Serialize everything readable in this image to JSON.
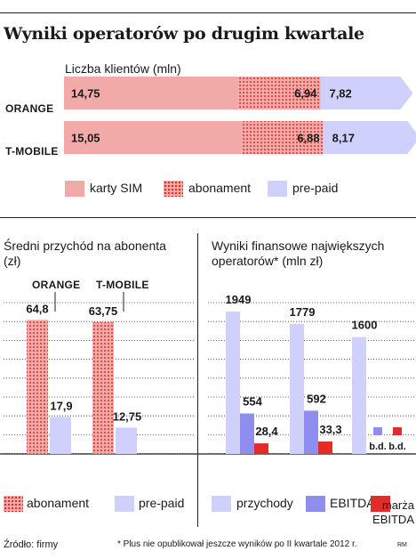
{
  "title": "Wyniki operatorów po drugim kwartale",
  "source": "Źródło: firmy",
  "footnote": "* Plus nie opublikował jeszcze wyników po II kwartale 2012 r.",
  "credit": "RM",
  "colors": {
    "karty_sim": "#f2aaa8",
    "abonament_dots": "#d9302e",
    "pre_paid": "#cfd0fb",
    "ebitda": "#8f8ef0",
    "marza": "#e32c2a"
  },
  "chart_data": [
    {
      "type": "bar",
      "stacked": true,
      "orientation": "horizontal",
      "title": "Liczba klientów (mln)",
      "categories": [
        "ORANGE",
        "T-MOBILE"
      ],
      "series": [
        {
          "name": "karty SIM",
          "values": [
            14.75,
            15.05
          ],
          "labels": [
            "14,75",
            "15,05"
          ]
        },
        {
          "name": "abonament",
          "values": [
            6.94,
            6.88
          ],
          "labels": [
            "6,94",
            "6,88"
          ]
        },
        {
          "name": "pre-paid",
          "values": [
            7.82,
            8.17
          ],
          "labels": [
            "7,82",
            "8,17"
          ]
        }
      ]
    },
    {
      "type": "bar",
      "title": "Średni przychód na abonenta (zł)",
      "categories": [
        "ORANGE",
        "T-MOBILE"
      ],
      "series": [
        {
          "name": "abonament",
          "values": [
            64.8,
            63.75
          ],
          "labels": [
            "64,8",
            "63,75"
          ]
        },
        {
          "name": "pre-paid",
          "values": [
            17.9,
            12.75
          ],
          "labels": [
            "17,9",
            "12,75"
          ]
        }
      ],
      "ylim": [
        0,
        80
      ]
    },
    {
      "type": "bar",
      "title": "Wyniki finansowe największych operatorów* (mln zł)",
      "groups": 3,
      "series": [
        {
          "name": "przychody",
          "values": [
            1949,
            1779,
            1600
          ],
          "labels": [
            "1949",
            "1779",
            "1600"
          ]
        },
        {
          "name": "EBITDA",
          "values": [
            554,
            592,
            null
          ],
          "labels": [
            "554",
            "592",
            "b.d."
          ]
        },
        {
          "name": "marża EBITDA",
          "values": [
            28.4,
            33.3,
            null
          ],
          "labels": [
            "28,4",
            "33,3",
            "b.d."
          ]
        }
      ],
      "ylim": [
        0,
        2200
      ]
    }
  ]
}
